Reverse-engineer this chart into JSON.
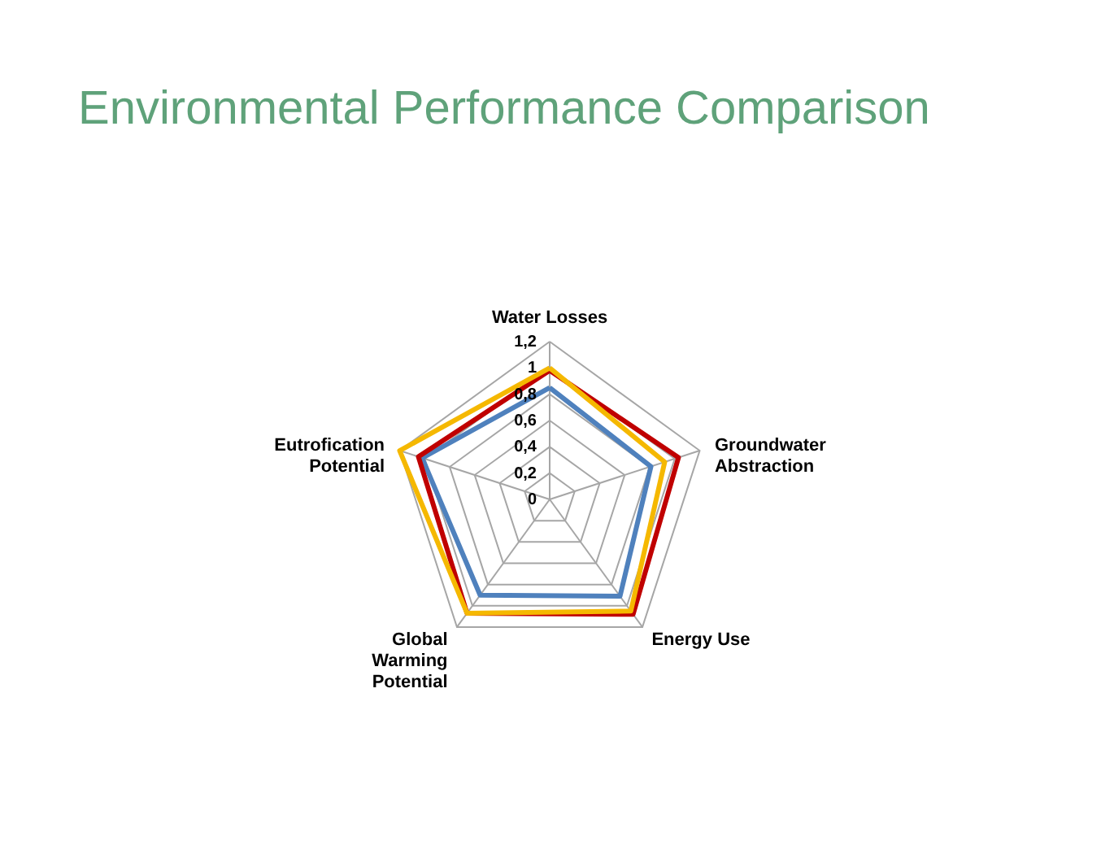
{
  "chart_data": {
    "type": "radar",
    "title": "Environmental Performance Comparison",
    "categories": [
      "Water Losses",
      "Groundwater Abstraction",
      "Energy Use",
      "Global Warming Potential",
      "Eutrofication Potential"
    ],
    "ylim": [
      0,
      1.2
    ],
    "yticks": [
      {
        "value": 0,
        "label": "0"
      },
      {
        "value": 0.2,
        "label": "0,2"
      },
      {
        "value": 0.4,
        "label": "0,4"
      },
      {
        "value": 0.6,
        "label": "0,6"
      },
      {
        "value": 0.8,
        "label": "0,8"
      },
      {
        "value": 1,
        "label": "1"
      },
      {
        "value": 1.2,
        "label": "1,2"
      }
    ],
    "grid": true,
    "marker": "none",
    "series": [
      {
        "color": "#4f81bd",
        "values": [
          0.85,
          0.81,
          0.91,
          0.9,
          1.02
        ]
      },
      {
        "color": "#c00000",
        "values": [
          0.98,
          1.03,
          1.08,
          1.07,
          1.05
        ]
      },
      {
        "color": "#f5b800",
        "values": [
          1.0,
          0.92,
          1.05,
          1.07,
          1.2
        ]
      }
    ]
  }
}
